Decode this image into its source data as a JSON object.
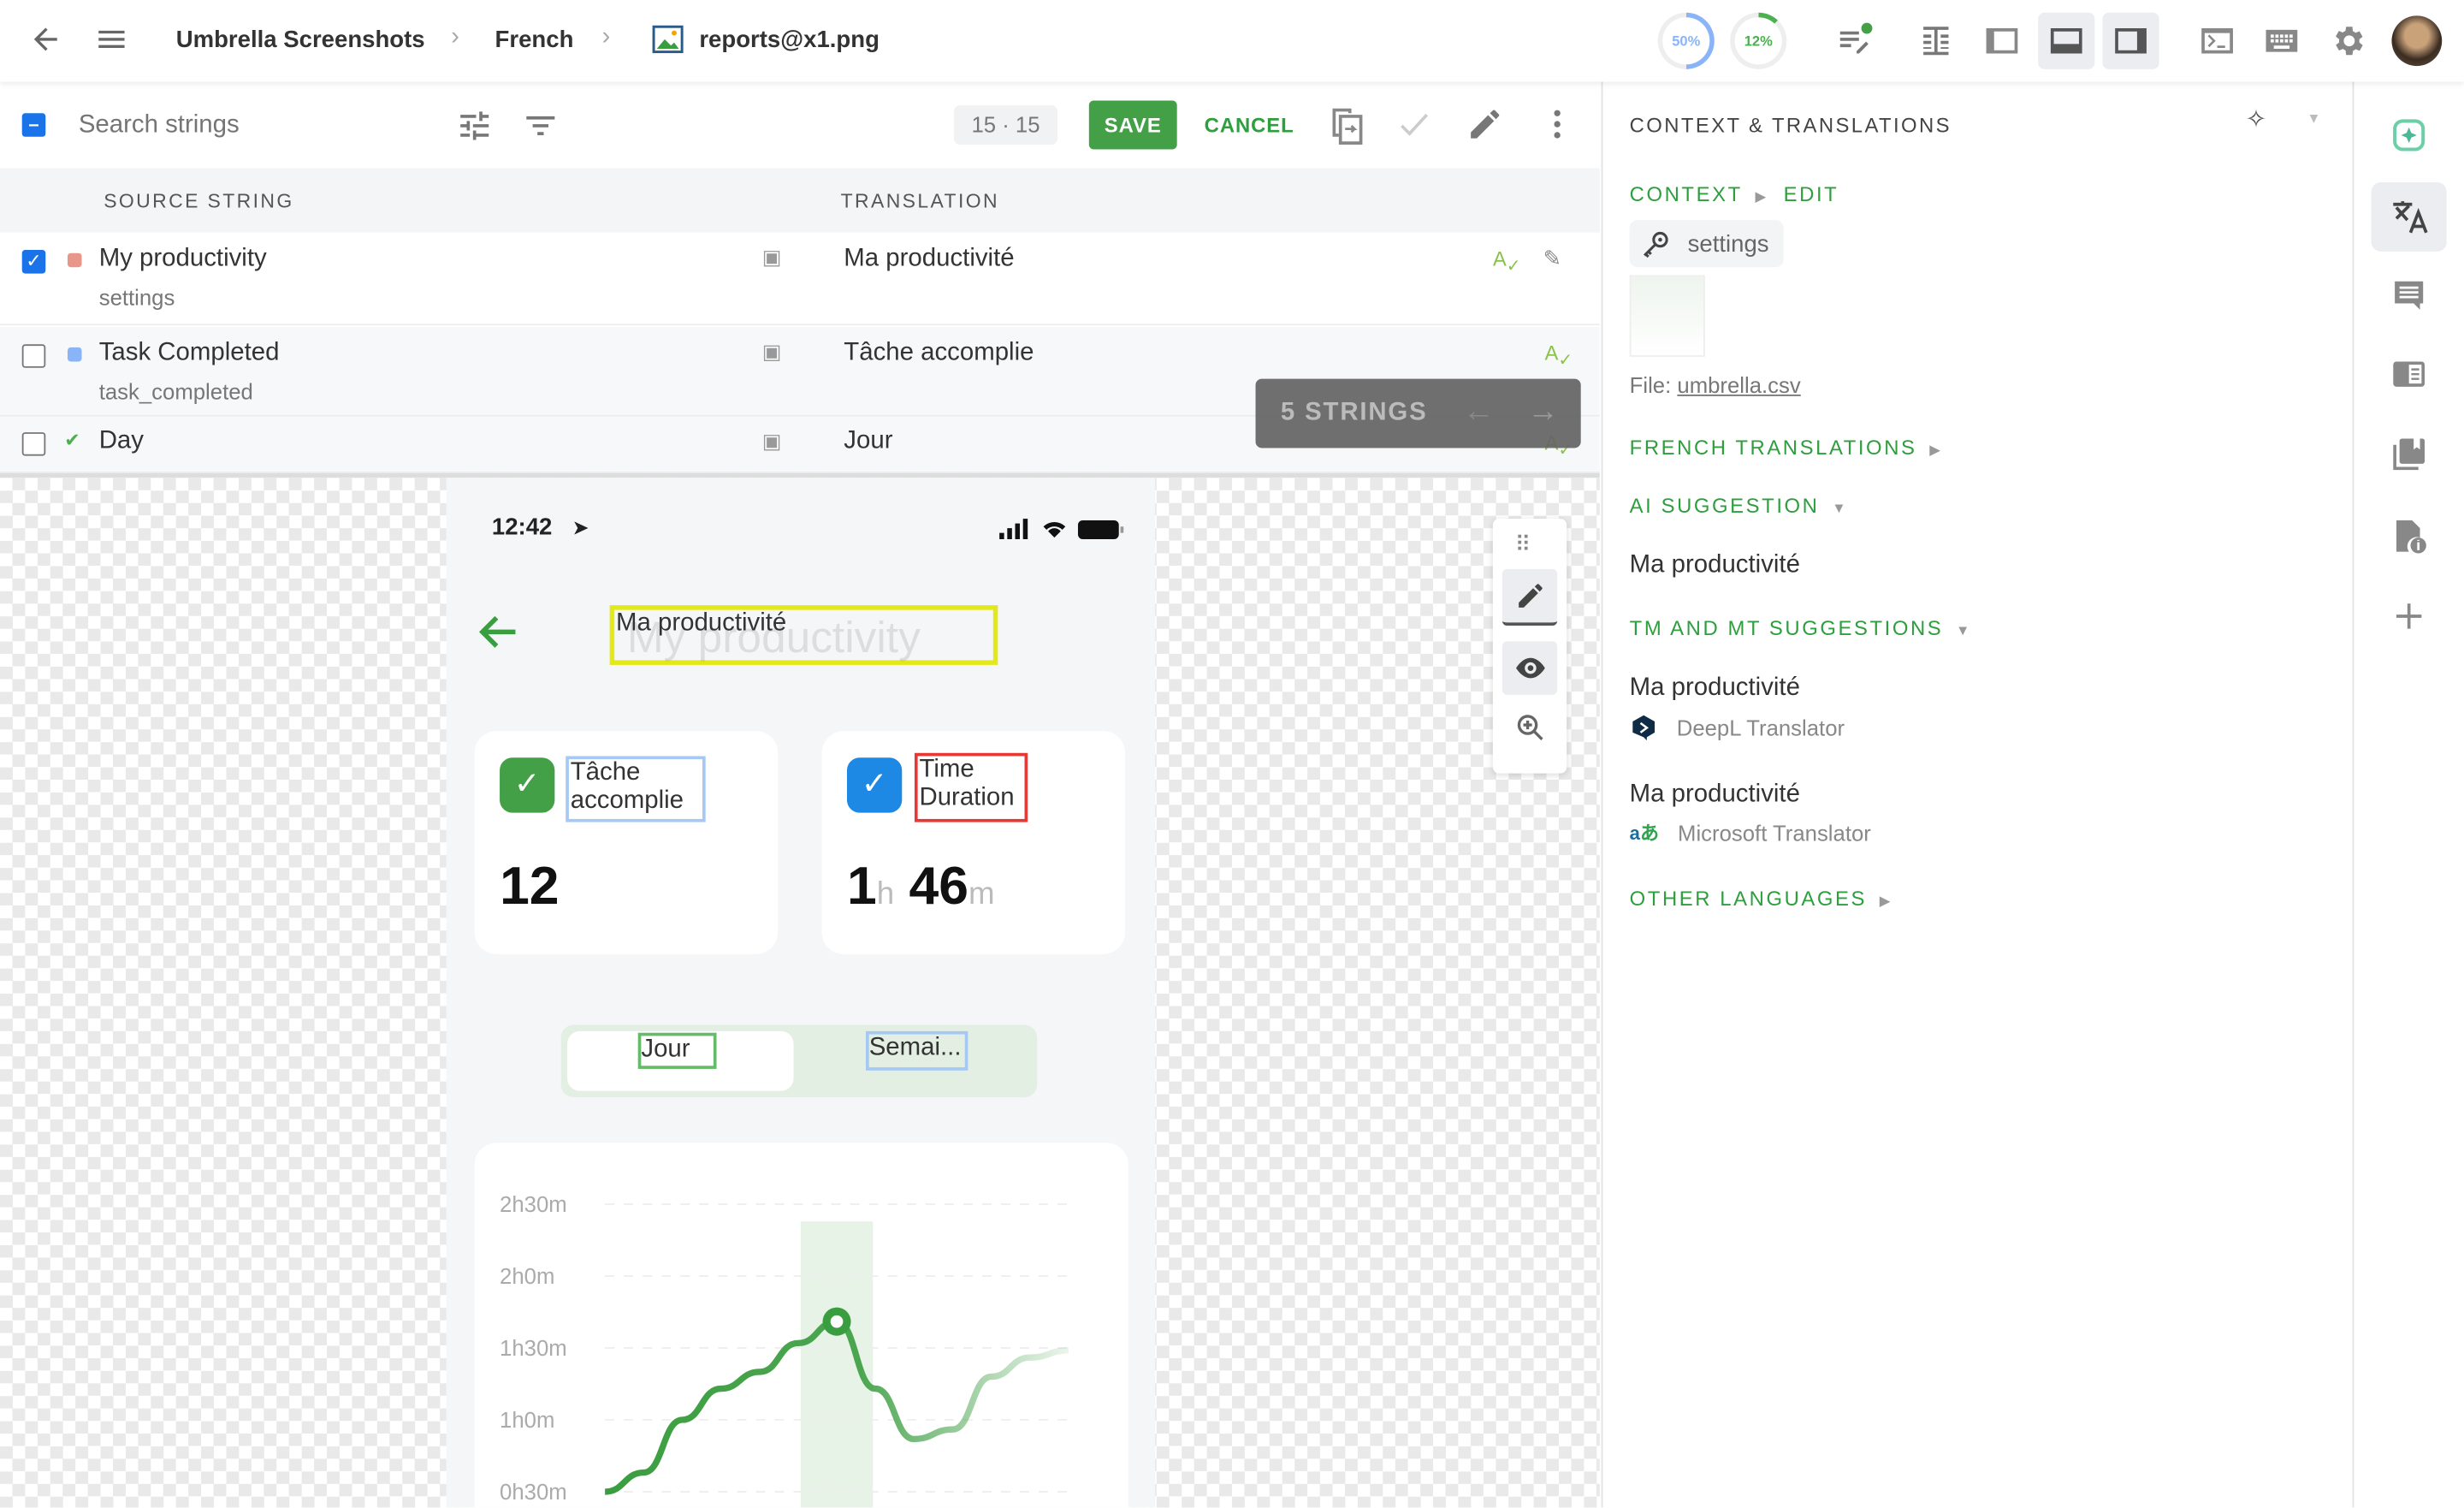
{
  "topbar": {
    "breadcrumb": [
      "Umbrella Screenshots",
      "French",
      "reports@x1.png"
    ],
    "progress": [
      {
        "label": "50%",
        "value": 50,
        "color": "#8ab4f8"
      },
      {
        "label": "12%",
        "value": 12,
        "color": "#4caf50"
      }
    ],
    "icons": [
      "back-arrow-icon",
      "menu-icon",
      "image-icon",
      "edit-list-icon",
      "layout-table-icon",
      "layout-sidebar-left-icon",
      "layout-bottom-icon",
      "layout-sidebar-right-icon",
      "terminal-icon",
      "keyboard-icon",
      "settings-gear-icon",
      "user-avatar"
    ]
  },
  "toolbar": {
    "search_placeholder": "Search strings",
    "counter": "15 · 15",
    "save": "SAVE",
    "cancel": "CANCEL"
  },
  "table": {
    "headers": {
      "source": "SOURCE STRING",
      "translation": "TRANSLATION"
    },
    "rows": [
      {
        "source": "My productivity",
        "key": "settings",
        "translation": "Ma productivité",
        "checked": true,
        "status_color": "#e8958a"
      },
      {
        "source": "Task Completed",
        "key": "task_completed",
        "translation": "Tâche accomplie",
        "checked": false,
        "status_color": "#8ab4f8"
      },
      {
        "source": "Day",
        "key": "",
        "translation": "Jour",
        "checked": false,
        "status_color": "#4caf50"
      }
    ]
  },
  "overlay": {
    "label": "5 STRINGS"
  },
  "phone": {
    "time": "12:42",
    "title_translation": "Ma productivité",
    "title_source": "My productivity",
    "card1": {
      "label": "Tâche accomplie",
      "value": "12"
    },
    "card2": {
      "label_line1": "Time",
      "label_line2": "Duration",
      "hours": "1",
      "h": "h",
      "minutes": "46",
      "m": "m"
    },
    "segments": [
      "Jour",
      "Semai..."
    ],
    "chart": {
      "type": "line",
      "y_ticks": [
        "2h30m",
        "2h0m",
        "1h30m",
        "1h0m",
        "0h30m"
      ],
      "y_tick_minutes": [
        150,
        120,
        90,
        60,
        30
      ],
      "values_minutes": [
        30,
        38,
        60,
        73,
        80,
        92,
        101,
        73,
        52,
        56,
        78,
        86,
        89
      ],
      "highlight_index": 6,
      "color": "#3a9d3f"
    }
  },
  "right": {
    "title": "CONTEXT & TRANSLATIONS",
    "context": "CONTEXT",
    "edit": "EDIT",
    "key_chip": "settings",
    "file_label": "File:",
    "file_name": "umbrella.csv",
    "french_translations": "FRENCH TRANSLATIONS",
    "ai_suggestion": "AI SUGGESTION",
    "ai_text": "Ma productivité",
    "tm_mt": "TM AND MT SUGGESTIONS",
    "suggestions": [
      {
        "text": "Ma productivité",
        "provider": "DeepL Translator"
      },
      {
        "text": "Ma productivité",
        "provider": "Microsoft Translator"
      }
    ],
    "other_languages": "OTHER LANGUAGES"
  },
  "colors": {
    "accent": "#43a047",
    "checkbox": "#1a73e8"
  }
}
